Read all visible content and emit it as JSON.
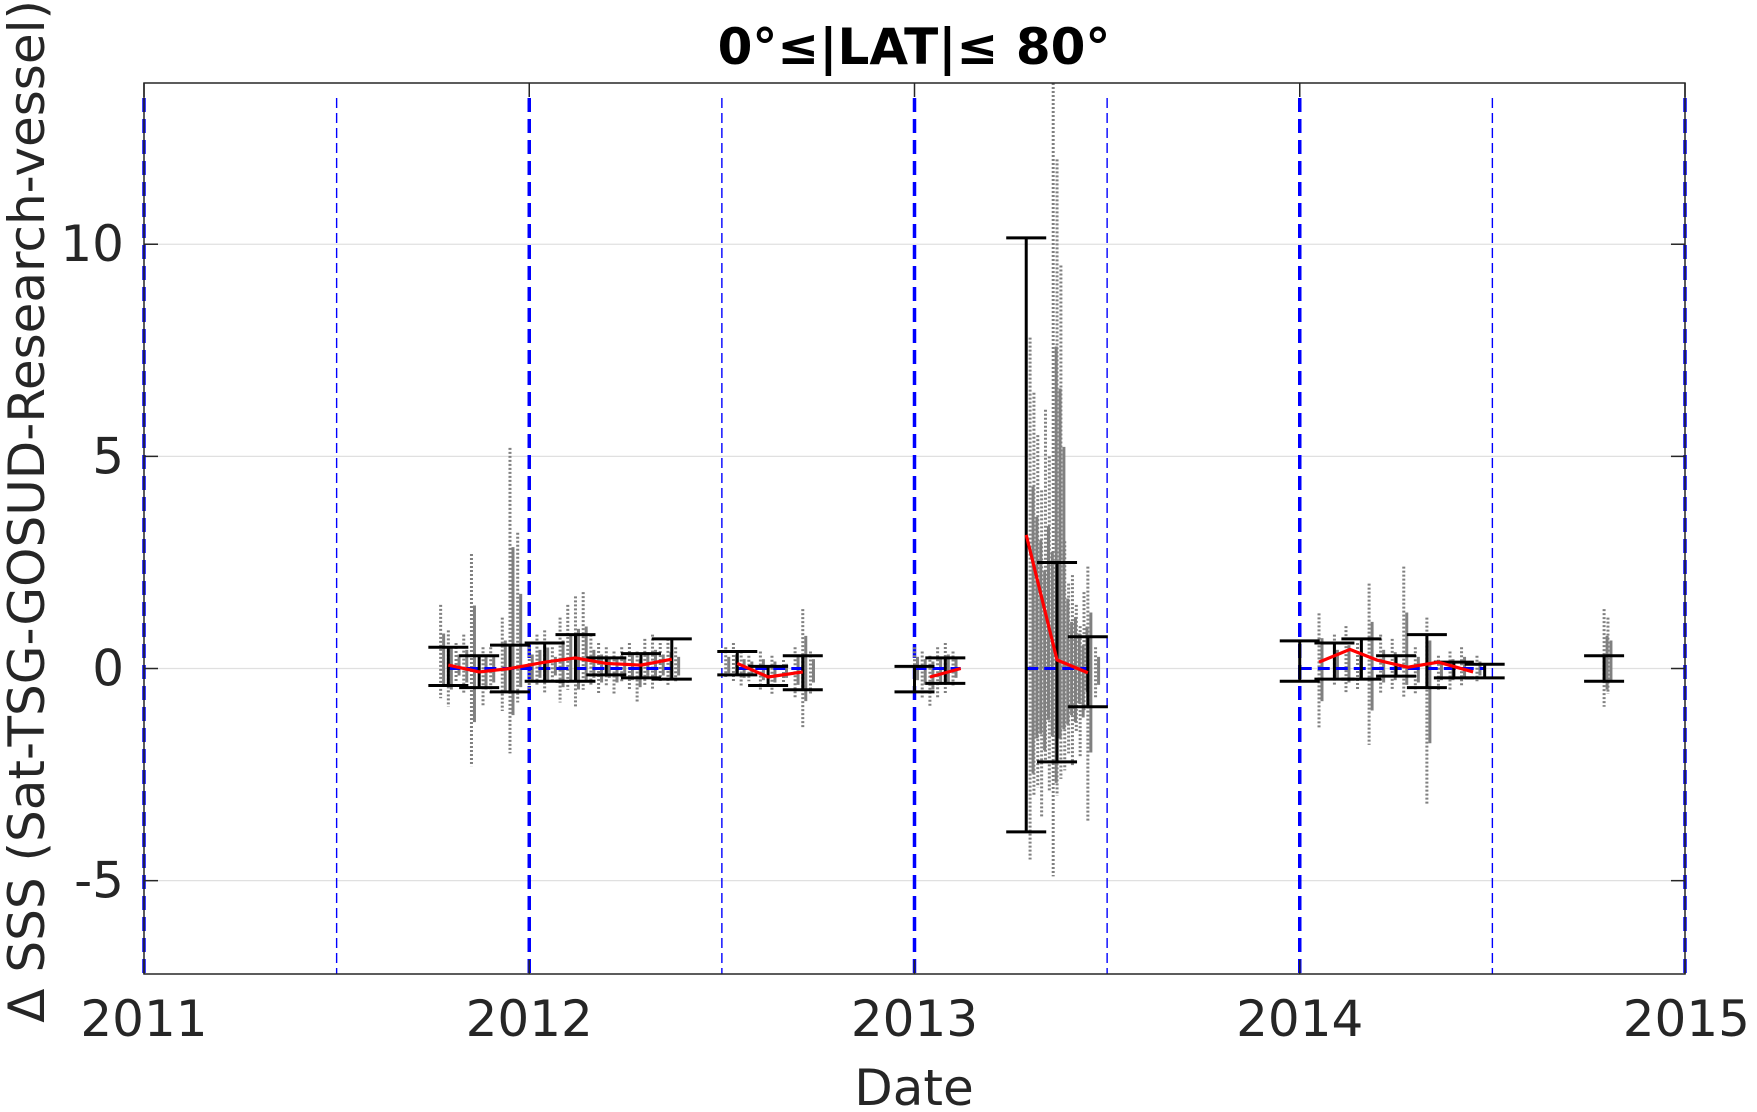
{
  "chart_data": {
    "type": "scatter",
    "title": "0°≤|LAT|≤ 80°",
    "xlabel": "Date",
    "ylabel": "Δ SSS (Sat-TSG-GOSUD-Research-vessel)",
    "x_ticks": [
      "2011",
      "2012",
      "2013",
      "2014",
      "2015"
    ],
    "y_ticks": [
      "-5",
      "0",
      "5",
      "10"
    ],
    "y_tick_values": [
      -5,
      0,
      5,
      10
    ],
    "xlim": [
      2011.0,
      2015.0
    ],
    "ylim": [
      -7.2,
      13.8
    ],
    "grid": "horizontal",
    "year_boundaries": [
      2011.0,
      2012.0,
      2013.0,
      2014.0,
      2015.0
    ],
    "half_year_lines": [
      2011.5,
      2012.5,
      2013.5,
      2014.5
    ],
    "colors": {
      "raw_points": "#808080",
      "monthly_mean": "#ff0000",
      "error_bars": "#000000",
      "reference_line": "#0000ff",
      "grid": "#e0e0e0"
    },
    "series": [
      {
        "kind": "errorbar",
        "x": [
          2011.79,
          2011.87,
          2011.95,
          2012.04,
          2012.12,
          2012.2,
          2012.29,
          2012.37,
          2012.54,
          2012.62,
          2012.71,
          2013.0,
          2013.08,
          2013.29,
          2013.37,
          2013.45,
          2014.0,
          2014.09,
          2014.16,
          2014.25,
          2014.33,
          2014.4,
          2014.48,
          2014.79
        ],
        "y": [
          0.08,
          -0.05,
          -0.05,
          0.15,
          0.25,
          0.1,
          0.07,
          0.22,
          0.1,
          -0.2,
          -0.08,
          -0.2,
          -0.05,
          3.15,
          0.2,
          -0.1,
          0.15,
          0.4,
          0.25,
          0.02,
          0.15,
          -0.05,
          -0.08,
          0.0
        ],
        "lower": [
          -0.4,
          -0.45,
          -0.55,
          -0.3,
          -0.3,
          -0.15,
          -0.22,
          -0.25,
          -0.15,
          -0.4,
          -0.5,
          -0.55,
          -0.35,
          -3.85,
          -2.2,
          -0.9,
          -0.3,
          -0.25,
          -0.25,
          -0.18,
          -0.45,
          -0.22,
          -0.22,
          -0.3
        ],
        "upper": [
          0.5,
          0.3,
          0.55,
          0.6,
          0.8,
          0.25,
          0.35,
          0.7,
          0.4,
          0.05,
          0.3,
          0.05,
          0.25,
          10.15,
          2.5,
          0.75,
          0.65,
          0.6,
          0.7,
          0.3,
          0.8,
          0.15,
          0.1,
          0.3
        ]
      },
      {
        "kind": "monthly_mean_line",
        "segments": [
          {
            "x": [
              2011.79,
              2011.87,
              2011.95,
              2012.04,
              2012.12,
              2012.2,
              2012.29,
              2012.37
            ],
            "y": [
              0.08,
              -0.08,
              0.0,
              0.15,
              0.25,
              0.12,
              0.08,
              0.22
            ]
          },
          {
            "x": [
              2012.54,
              2012.62,
              2012.71
            ],
            "y": [
              0.12,
              -0.2,
              -0.08
            ]
          },
          {
            "x": [
              2013.04,
              2013.12
            ],
            "y": [
              -0.2,
              0.0
            ]
          },
          {
            "x": [
              2013.29,
              2013.37,
              2013.45
            ],
            "y": [
              3.15,
              0.2,
              -0.1
            ]
          },
          {
            "x": [
              2014.05,
              2014.13,
              2014.2,
              2014.28,
              2014.36,
              2014.45
            ],
            "y": [
              0.15,
              0.45,
              0.2,
              0.03,
              0.15,
              -0.08
            ]
          }
        ]
      },
      {
        "kind": "reference_line",
        "segments": [
          {
            "x": [
              2011.79,
              2012.37
            ],
            "y": [
              0,
              0
            ]
          },
          {
            "x": [
              2012.54,
              2012.71
            ],
            "y": [
              0,
              0
            ]
          },
          {
            "x": [
              2013.0,
              2013.12
            ],
            "y": [
              0,
              0
            ]
          },
          {
            "x": [
              2013.29,
              2013.45
            ],
            "y": [
              0,
              0
            ]
          },
          {
            "x": [
              2014.0,
              2014.48
            ],
            "y": [
              0,
              0
            ]
          },
          {
            "x": [
              2014.79,
              2014.79
            ],
            "y": [
              0,
              0
            ]
          }
        ]
      },
      {
        "kind": "raw_scatter_columns",
        "x": [
          2011.77,
          2011.79,
          2011.81,
          2011.83,
          2011.85,
          2011.88,
          2011.9,
          2011.93,
          2011.95,
          2011.97,
          2012.0,
          2012.02,
          2012.04,
          2012.06,
          2012.08,
          2012.1,
          2012.12,
          2012.14,
          2012.16,
          2012.18,
          2012.2,
          2012.22,
          2012.24,
          2012.26,
          2012.28,
          2012.3,
          2012.32,
          2012.34,
          2012.36,
          2012.38,
          2012.51,
          2012.53,
          2012.55,
          2012.57,
          2012.6,
          2012.63,
          2012.66,
          2012.69,
          2012.71,
          2012.73,
          2013.0,
          2013.02,
          2013.04,
          2013.06,
          2013.08,
          2013.1,
          2013.3,
          2013.31,
          2013.32,
          2013.33,
          2013.34,
          2013.35,
          2013.36,
          2013.37,
          2013.38,
          2013.39,
          2013.4,
          2013.41,
          2013.42,
          2013.43,
          2013.44,
          2013.45,
          2013.47,
          2014.05,
          2014.09,
          2014.12,
          2014.15,
          2014.18,
          2014.21,
          2014.24,
          2014.27,
          2014.3,
          2014.33,
          2014.36,
          2014.39,
          2014.42,
          2014.46,
          2014.79,
          2014.8
        ],
        "low": [
          -0.7,
          -0.9,
          -0.3,
          -0.6,
          -2.3,
          -0.9,
          -0.6,
          -1.0,
          -2.0,
          -0.8,
          -0.5,
          -0.4,
          -0.6,
          -0.3,
          -0.8,
          -0.5,
          -0.9,
          -0.5,
          -0.4,
          -0.6,
          -0.4,
          -0.6,
          -0.3,
          -0.5,
          -0.8,
          -0.4,
          -0.5,
          -0.3,
          -0.4,
          -0.3,
          -0.2,
          -0.3,
          -0.4,
          -0.3,
          -0.5,
          -0.6,
          -0.4,
          -0.7,
          -1.4,
          -0.6,
          -0.5,
          -0.7,
          -0.9,
          -0.7,
          -0.6,
          -0.4,
          -4.5,
          -3.0,
          -2.8,
          -3.5,
          -2.2,
          -2.9,
          -4.9,
          -3.0,
          -2.6,
          -2.4,
          -2.0,
          -2.3,
          -1.5,
          -2.1,
          -1.0,
          -3.6,
          -0.7,
          -1.4,
          -0.4,
          -0.6,
          -0.5,
          -1.8,
          -0.6,
          -0.5,
          -0.7,
          -0.6,
          -3.2,
          -0.5,
          -0.5,
          -0.4,
          -0.3,
          -0.9,
          -0.6
        ],
        "high": [
          1.5,
          0.9,
          0.6,
          0.8,
          2.7,
          0.5,
          0.5,
          1.2,
          5.2,
          3.2,
          0.6,
          0.8,
          0.9,
          0.5,
          1.2,
          1.5,
          1.7,
          1.8,
          0.8,
          0.6,
          0.5,
          0.4,
          0.5,
          0.6,
          0.4,
          0.7,
          0.8,
          0.6,
          0.7,
          0.5,
          0.5,
          0.6,
          0.4,
          0.3,
          0.4,
          0.3,
          0.2,
          0.5,
          1.4,
          0.4,
          0.5,
          0.4,
          0.3,
          0.5,
          0.6,
          0.4,
          7.8,
          6.5,
          5.5,
          4.2,
          6.1,
          5.0,
          13.8,
          12.0,
          9.5,
          3.0,
          2.0,
          2.2,
          1.5,
          1.0,
          1.8,
          2.4,
          0.5,
          1.3,
          0.8,
          1.0,
          0.6,
          2.0,
          0.8,
          0.7,
          2.4,
          0.5,
          1.2,
          0.3,
          0.4,
          0.5,
          0.3,
          1.4,
          1.2
        ]
      }
    ]
  }
}
